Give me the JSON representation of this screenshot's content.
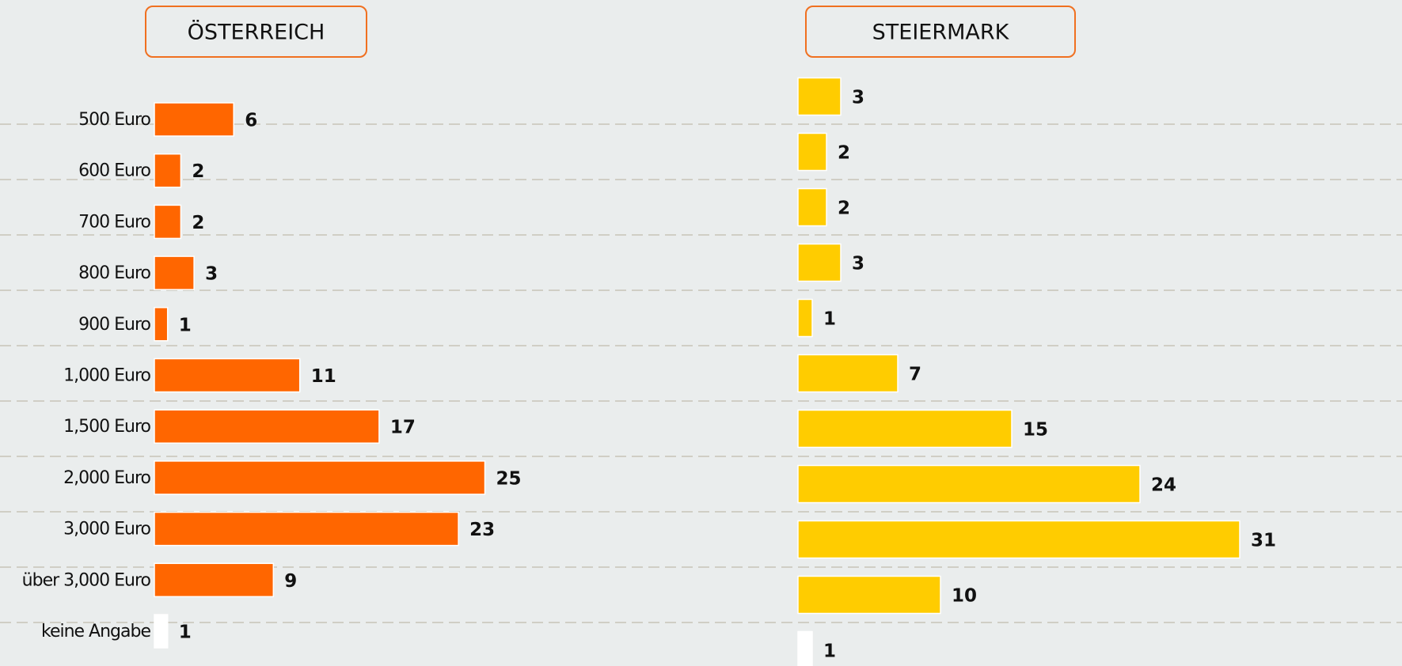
{
  "chart_data": [
    {
      "type": "bar",
      "orientation": "horizontal",
      "title": "ÖSTERREICH",
      "categories": [
        "500 Euro",
        "600 Euro",
        "700 Euro",
        "800 Euro",
        "900 Euro",
        "1,000 Euro",
        "1,500 Euro",
        "2,000 Euro",
        "3,000 Euro",
        "über 3,000 Euro",
        "keine Angabe"
      ],
      "values": [
        6,
        2,
        2,
        3,
        1,
        11,
        17,
        25,
        23,
        9,
        1
      ],
      "colors": [
        "#ff6600",
        "#ff6600",
        "#ff6600",
        "#ff6600",
        "#ff6600",
        "#ff6600",
        "#ff6600",
        "#ff6600",
        "#ff6600",
        "#ff6600",
        "#ffffff"
      ]
    },
    {
      "type": "bar",
      "orientation": "horizontal",
      "title": "STEIERMARK",
      "values": [
        3,
        2,
        2,
        3,
        1,
        7,
        15,
        24,
        31,
        10,
        1
      ],
      "colors": [
        "#ffcc00",
        "#ffcc00",
        "#ffcc00",
        "#ffcc00",
        "#ffcc00",
        "#ffcc00",
        "#ffcc00",
        "#ffcc00",
        "#ffcc00",
        "#ffcc00",
        "#ffffff"
      ]
    }
  ]
}
